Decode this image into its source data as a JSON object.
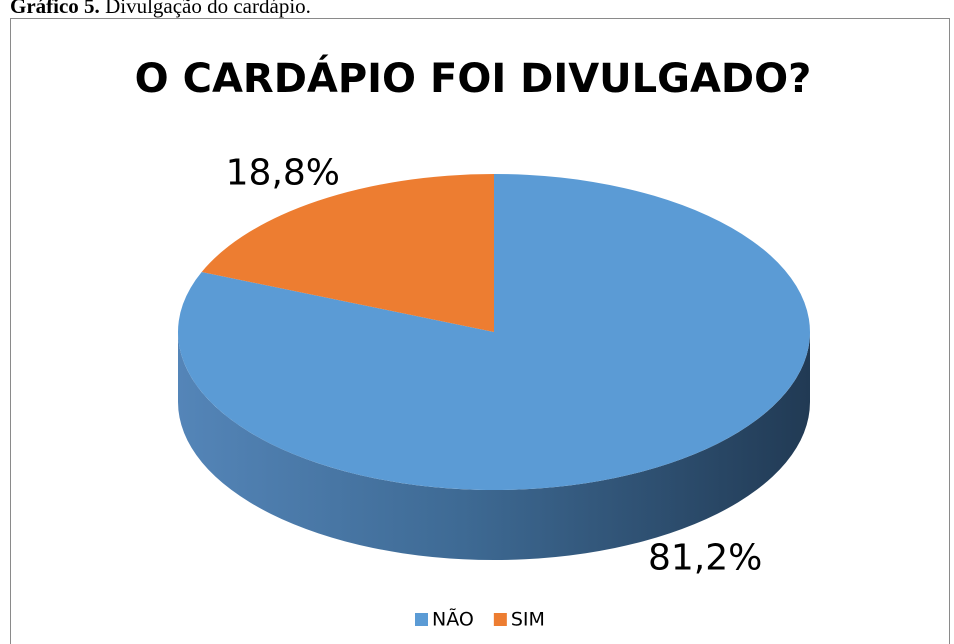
{
  "caption_label": "Gráfico 5.",
  "caption": "Divulgação do cardápio.",
  "chart_data": {
    "type": "pie",
    "title": "O CARDÁPIO FOI DIVULGADO?",
    "categories": [
      "NÃO",
      "SIM"
    ],
    "values": [
      81.2,
      18.8
    ],
    "value_labels": [
      "81,2%",
      "18,8%"
    ],
    "colors": [
      "#5b9bd5",
      "#ed7d31"
    ],
    "legend": "bottom"
  }
}
